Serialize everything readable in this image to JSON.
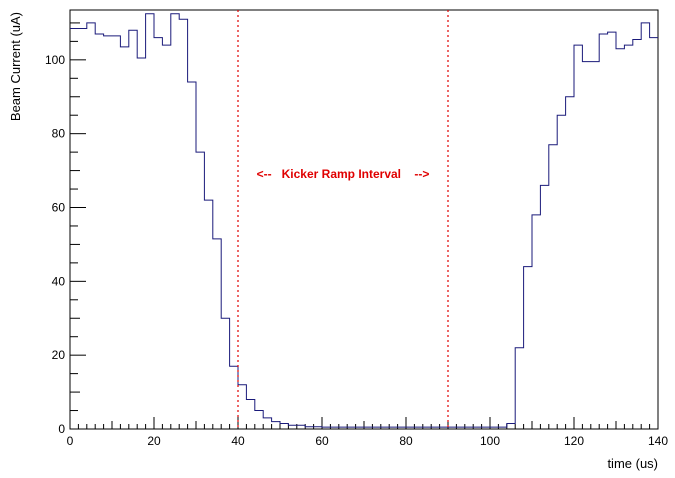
{
  "chart_data": {
    "type": "line",
    "style": "step-histogram",
    "title": "",
    "xlabel": "time (us)",
    "ylabel": "Beam Current (uA)",
    "xlim": [
      0,
      140
    ],
    "ylim": [
      0,
      113.5
    ],
    "bin_width": 2,
    "x_ticks": [
      0,
      20,
      40,
      60,
      80,
      100,
      120,
      140
    ],
    "y_ticks": [
      0,
      20,
      40,
      60,
      80,
      100
    ],
    "grid": false,
    "line_color": "#1a1a7a",
    "series": [
      {
        "x": [
          0,
          2,
          4,
          6,
          8,
          10,
          12,
          14,
          16,
          18,
          20,
          22,
          24,
          26,
          28,
          30,
          32,
          34,
          36,
          38,
          40,
          42,
          44,
          46,
          48,
          50,
          52,
          54,
          56,
          58,
          60,
          62,
          64,
          66,
          68,
          70,
          72,
          74,
          76,
          78,
          80,
          82,
          84,
          86,
          88,
          90,
          92,
          94,
          96,
          98,
          100,
          102,
          104,
          106,
          108,
          110,
          112,
          114,
          116,
          118,
          120,
          122,
          124,
          126,
          128,
          130,
          132,
          134,
          136,
          138
        ],
        "values": [
          108.5,
          108.5,
          110,
          107,
          106.5,
          106.5,
          103.5,
          108,
          100.5,
          112.5,
          106,
          104,
          112.5,
          111,
          94,
          75,
          62,
          51.5,
          30,
          17,
          12,
          8,
          5,
          3,
          2,
          1.5,
          1,
          1,
          0.6,
          0.6,
          0.5,
          0.5,
          0.5,
          0.5,
          0.5,
          0.5,
          0.5,
          0.5,
          0.5,
          0.5,
          0.5,
          0.5,
          0.5,
          0.5,
          0.5,
          0.5,
          0.5,
          0.5,
          0.5,
          0.5,
          0.5,
          0.5,
          1.5,
          22,
          44,
          58,
          66,
          77,
          85,
          90,
          104,
          99.5,
          99.5,
          107,
          107.5,
          103,
          104,
          105.5,
          110,
          106
        ]
      }
    ],
    "markers": {
      "lines": [
        40,
        90
      ],
      "color": "#e00000",
      "annotation": "<--   Kicker Ramp Interval    -->"
    }
  }
}
